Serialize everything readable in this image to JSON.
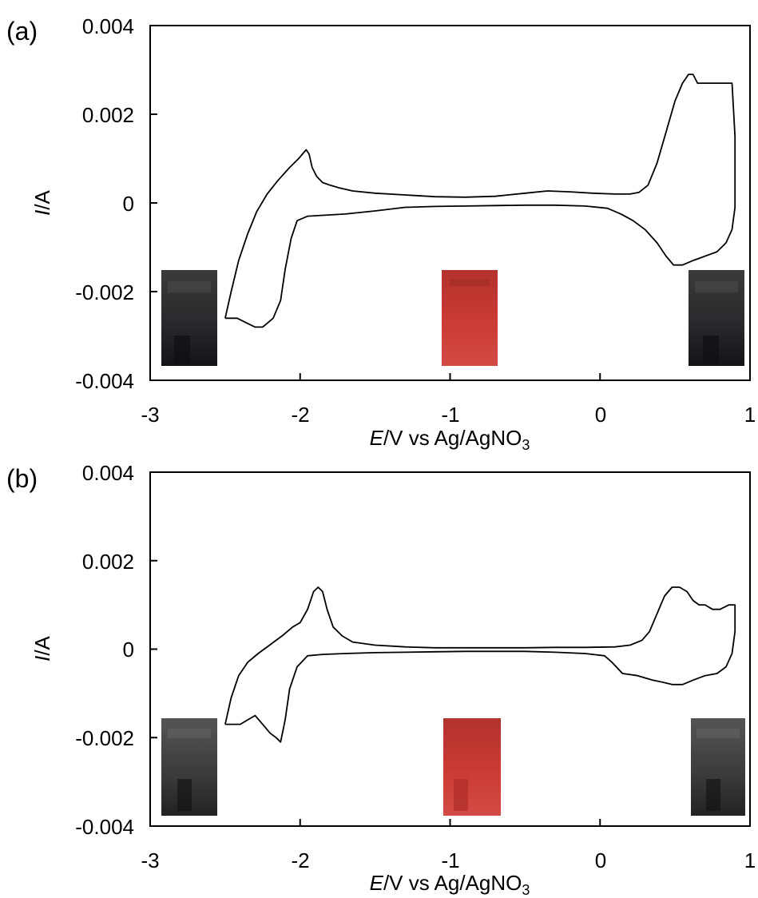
{
  "chart_data": [
    {
      "type": "line",
      "panel_label": "(a)",
      "xlabel_italic": "E",
      "xlabel_rest": "/V vs Ag/AgNO",
      "xlabel_sub": "3",
      "ylabel_italic": "I",
      "ylabel_rest": "/A",
      "xlim": [
        -3,
        1
      ],
      "ylim": [
        -0.004,
        0.004
      ],
      "xticks": [
        "-3",
        "-2",
        "-1",
        "0",
        "1"
      ],
      "yticks": [
        "0.004",
        "0.002",
        "0",
        "-0.002",
        "-0.004"
      ],
      "grid": false,
      "series": [
        {
          "x": [
            -2.5,
            -2.46,
            -2.41,
            -2.35,
            -2.29,
            -2.22,
            -2.15,
            -2.07,
            -2.01,
            -1.96,
            -1.94,
            -1.92,
            -1.89,
            -1.85,
            -1.8,
            -1.74,
            -1.65,
            -1.5,
            -1.3,
            -1.1,
            -0.9,
            -0.7,
            -0.5,
            -0.35,
            -0.2,
            -0.05,
            0.1,
            0.2,
            0.26,
            0.32,
            0.38,
            0.44,
            0.5,
            0.55,
            0.59,
            0.62,
            0.65,
            0.7,
            0.78,
            0.88,
            0.9,
            0.9,
            0.88,
            0.84,
            0.78,
            0.7,
            0.62,
            0.55,
            0.49,
            0.44,
            0.38,
            0.3,
            0.22,
            0.14,
            0.05,
            -0.1,
            -0.3,
            -0.5,
            -0.7,
            -0.9,
            -1.1,
            -1.3,
            -1.5,
            -1.7,
            -1.85,
            -1.95,
            -2.02,
            -2.06,
            -2.1,
            -2.13,
            -2.18,
            -2.25,
            -2.3,
            -2.36,
            -2.42,
            -2.48,
            -2.5
          ],
          "y": [
            -0.0026,
            -0.002,
            -0.0013,
            -0.0007,
            -0.0002,
            0.0002,
            0.0005,
            0.0008,
            0.001,
            0.0012,
            0.0011,
            0.0008,
            0.0006,
            0.00046,
            0.0004,
            0.00034,
            0.00027,
            0.00022,
            0.00018,
            0.00014,
            0.00013,
            0.00015,
            0.00022,
            0.00027,
            0.00025,
            0.00022,
            0.0002,
            0.0002,
            0.00024,
            0.0004,
            0.0009,
            0.0016,
            0.0023,
            0.0027,
            0.0029,
            0.0029,
            0.0027,
            0.0027,
            0.0027,
            0.0027,
            0.0015,
            -0.0001,
            -0.0006,
            -0.0009,
            -0.0011,
            -0.0012,
            -0.0013,
            -0.0014,
            -0.0014,
            -0.0012,
            -0.0009,
            -0.0006,
            -0.0004,
            -0.00025,
            -0.00012,
            -7e-05,
            -5e-05,
            -5e-05,
            -6e-05,
            -7e-05,
            -8e-05,
            -0.0001,
            -0.00018,
            -0.00025,
            -0.00028,
            -0.0003,
            -0.0004,
            -0.0008,
            -0.0015,
            -0.0022,
            -0.0026,
            -0.0028,
            -0.0028,
            -0.0027,
            -0.0026,
            -0.0026,
            -0.0026
          ]
        }
      ]
    },
    {
      "type": "line",
      "panel_label": "(b)",
      "xlabel_italic": "E",
      "xlabel_rest": "/V vs Ag/AgNO",
      "xlabel_sub": "3",
      "ylabel_italic": "I",
      "ylabel_rest": "/A",
      "xlim": [
        -3,
        1
      ],
      "ylim": [
        -0.004,
        0.004
      ],
      "xticks": [
        "-3",
        "-2",
        "-1",
        "0",
        "1"
      ],
      "yticks": [
        "0.004",
        "0.002",
        "0",
        "-0.002",
        "-0.004"
      ],
      "grid": false,
      "series": [
        {
          "x": [
            -2.5,
            -2.46,
            -2.41,
            -2.35,
            -2.28,
            -2.2,
            -2.12,
            -2.05,
            -2.0,
            -1.95,
            -1.91,
            -1.88,
            -1.85,
            -1.82,
            -1.78,
            -1.72,
            -1.65,
            -1.5,
            -1.3,
            -1.1,
            -0.9,
            -0.7,
            -0.5,
            -0.3,
            -0.1,
            0.1,
            0.2,
            0.28,
            0.33,
            0.38,
            0.43,
            0.48,
            0.53,
            0.58,
            0.62,
            0.66,
            0.7,
            0.75,
            0.8,
            0.86,
            0.9,
            0.9,
            0.88,
            0.84,
            0.78,
            0.7,
            0.62,
            0.55,
            0.48,
            0.42,
            0.35,
            0.25,
            0.15,
            0.08,
            0.03,
            -0.1,
            -0.3,
            -0.5,
            -0.7,
            -0.9,
            -1.1,
            -1.3,
            -1.5,
            -1.7,
            -1.85,
            -1.95,
            -2.02,
            -2.07,
            -2.1,
            -2.13,
            -2.16,
            -2.2,
            -2.25,
            -2.3,
            -2.35,
            -2.4,
            -2.45,
            -2.5
          ],
          "y": [
            -0.0017,
            -0.0011,
            -0.0006,
            -0.0003,
            -0.0001,
            0.0001,
            0.0003,
            0.0005,
            0.0006,
            0.0009,
            0.0013,
            0.0014,
            0.0013,
            0.0009,
            0.0005,
            0.0003,
            0.00016,
            9e-05,
            5e-05,
            3e-05,
            3e-05,
            3e-05,
            3e-05,
            4e-05,
            4e-05,
            5e-05,
            9e-05,
            0.0002,
            0.0004,
            0.0008,
            0.0012,
            0.0014,
            0.0014,
            0.0013,
            0.0011,
            0.001,
            0.001,
            0.0009,
            0.0009,
            0.001,
            0.001,
            0.0004,
            -0.0001,
            -0.0004,
            -0.00055,
            -0.0006,
            -0.0007,
            -0.0008,
            -0.0008,
            -0.00075,
            -0.0007,
            -0.0006,
            -0.00055,
            -0.0003,
            -0.00015,
            -0.0001,
            -7e-05,
            -5e-05,
            -5e-05,
            -5e-05,
            -6e-05,
            -7e-05,
            -8e-05,
            -0.0001,
            -0.00012,
            -0.00015,
            -0.0004,
            -0.0009,
            -0.0016,
            -0.0021,
            -0.002,
            -0.0019,
            -0.0017,
            -0.0015,
            -0.0016,
            -0.0017,
            -0.0017,
            -0.0017
          ]
        }
      ]
    }
  ]
}
